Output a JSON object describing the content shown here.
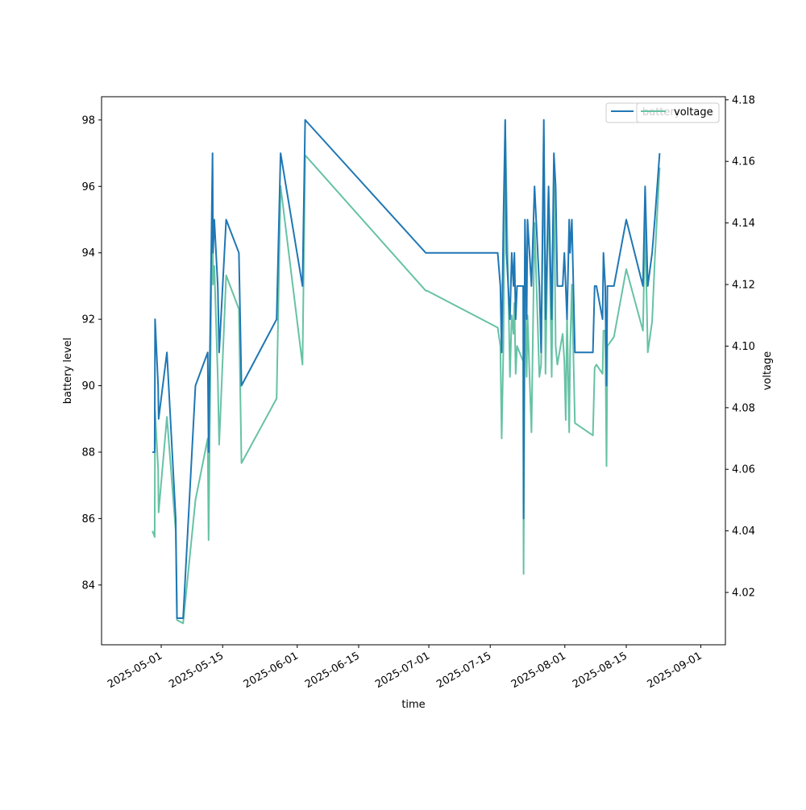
{
  "chart_data": {
    "type": "line",
    "xlabel": "time",
    "ylabel_left": "battery level",
    "ylabel_right": "voltage",
    "x_range_days": [
      -13.6,
      128.6
    ],
    "ylim_left": [
      82.2,
      98.7
    ],
    "ylim_right": [
      4.003,
      4.181
    ],
    "left_ticks": [
      84,
      86,
      88,
      90,
      92,
      94,
      96,
      98
    ],
    "right_ticks": [
      "4.02",
      "4.04",
      "4.06",
      "4.08",
      "4.10",
      "4.12",
      "4.14",
      "4.16",
      "4.18"
    ],
    "x_ticks": [
      {
        "day": 0,
        "label": "2025-05-01"
      },
      {
        "day": 14,
        "label": "2025-05-15"
      },
      {
        "day": 31,
        "label": "2025-06-01"
      },
      {
        "day": 45,
        "label": "2025-06-15"
      },
      {
        "day": 61,
        "label": "2025-07-01"
      },
      {
        "day": 75,
        "label": "2025-07-15"
      },
      {
        "day": 92,
        "label": "2025-08-01"
      },
      {
        "day": 106,
        "label": "2025-08-15"
      },
      {
        "day": 123,
        "label": "2025-09-01"
      }
    ],
    "legend": {
      "position": "upper right",
      "entries": [
        "battery",
        "voltage"
      ]
    },
    "series": [
      {
        "name": "battery",
        "axis": "left",
        "color": "#1f77b4",
        "points": [
          [
            -2.0,
            88
          ],
          [
            -1.5,
            88
          ],
          [
            -1.4,
            92
          ],
          [
            -0.7,
            90
          ],
          [
            -0.6,
            89
          ],
          [
            1.3,
            91
          ],
          [
            3.3,
            86
          ],
          [
            3.6,
            83
          ],
          [
            5.0,
            83
          ],
          [
            7.8,
            90
          ],
          [
            10.6,
            91
          ],
          [
            10.8,
            88
          ],
          [
            11.7,
            97
          ],
          [
            11.8,
            94
          ],
          [
            12.1,
            95
          ],
          [
            12.9,
            93
          ],
          [
            13.2,
            91
          ],
          [
            14.8,
            95
          ],
          [
            17.7,
            94
          ],
          [
            18.3,
            90
          ],
          [
            26.3,
            92
          ],
          [
            27.2,
            97
          ],
          [
            32.2,
            93
          ],
          [
            32.8,
            98
          ],
          [
            60.3,
            94
          ],
          [
            60.6,
            94
          ],
          [
            76.7,
            94
          ],
          [
            77.3,
            93
          ],
          [
            77.6,
            91
          ],
          [
            78.0,
            95
          ],
          [
            78.4,
            98
          ],
          [
            78.7,
            94
          ],
          [
            79.5,
            92
          ],
          [
            79.9,
            94
          ],
          [
            80.3,
            93
          ],
          [
            80.5,
            94
          ],
          [
            80.8,
            92
          ],
          [
            81.1,
            93
          ],
          [
            82.5,
            93
          ],
          [
            82.6,
            86
          ],
          [
            82.9,
            95
          ],
          [
            83.3,
            92
          ],
          [
            83.5,
            95
          ],
          [
            84.4,
            93
          ],
          [
            85.1,
            96
          ],
          [
            86.2,
            93
          ],
          [
            86.6,
            91
          ],
          [
            87.2,
            98
          ],
          [
            87.6,
            92
          ],
          [
            88.3,
            96
          ],
          [
            89.0,
            92
          ],
          [
            89.5,
            97
          ],
          [
            89.9,
            96
          ],
          [
            90.3,
            93
          ],
          [
            91.5,
            93
          ],
          [
            91.9,
            94
          ],
          [
            92.2,
            93
          ],
          [
            92.5,
            92
          ],
          [
            93.0,
            95
          ],
          [
            93.2,
            94
          ],
          [
            93.6,
            95
          ],
          [
            94.3,
            91
          ],
          [
            98.4,
            91
          ],
          [
            98.8,
            93
          ],
          [
            99.2,
            93
          ],
          [
            100.6,
            92
          ],
          [
            100.8,
            94
          ],
          [
            101.2,
            93
          ],
          [
            101.5,
            90
          ],
          [
            101.7,
            93
          ],
          [
            103.2,
            93
          ],
          [
            106.0,
            95
          ],
          [
            109.8,
            93
          ],
          [
            110.3,
            96
          ],
          [
            110.9,
            93
          ],
          [
            111.9,
            94
          ],
          [
            112.5,
            95
          ],
          [
            113.6,
            97
          ]
        ]
      },
      {
        "name": "voltage",
        "axis": "right",
        "color": "#66c2a5",
        "points": [
          [
            -2.0,
            4.04
          ],
          [
            -1.5,
            4.038
          ],
          [
            -1.4,
            4.079
          ],
          [
            -0.7,
            4.06
          ],
          [
            -0.6,
            4.046
          ],
          [
            1.3,
            4.077
          ],
          [
            3.3,
            4.04
          ],
          [
            3.6,
            4.011
          ],
          [
            5.0,
            4.01
          ],
          [
            7.8,
            4.05
          ],
          [
            10.6,
            4.07
          ],
          [
            10.8,
            4.037
          ],
          [
            11.7,
            4.158
          ],
          [
            11.8,
            4.12
          ],
          [
            12.1,
            4.126
          ],
          [
            12.9,
            4.09
          ],
          [
            13.2,
            4.068
          ],
          [
            14.8,
            4.123
          ],
          [
            17.7,
            4.112
          ],
          [
            18.3,
            4.062
          ],
          [
            26.3,
            4.083
          ],
          [
            27.2,
            4.152
          ],
          [
            32.2,
            4.094
          ],
          [
            32.8,
            4.162
          ],
          [
            60.3,
            4.118
          ],
          [
            60.6,
            4.118
          ],
          [
            76.7,
            4.106
          ],
          [
            77.3,
            4.1
          ],
          [
            77.6,
            4.07
          ],
          [
            78.0,
            4.1
          ],
          [
            78.4,
            4.173
          ],
          [
            78.7,
            4.15
          ],
          [
            79.5,
            4.09
          ],
          [
            79.9,
            4.11
          ],
          [
            80.3,
            4.104
          ],
          [
            80.5,
            4.114
          ],
          [
            80.8,
            4.091
          ],
          [
            81.1,
            4.1
          ],
          [
            82.5,
            4.095
          ],
          [
            82.6,
            4.026
          ],
          [
            82.9,
            4.12
          ],
          [
            83.3,
            4.09
          ],
          [
            83.5,
            4.11
          ],
          [
            84.4,
            4.072
          ],
          [
            85.1,
            4.14
          ],
          [
            86.2,
            4.09
          ],
          [
            86.6,
            4.094
          ],
          [
            87.2,
            4.168
          ],
          [
            87.6,
            4.091
          ],
          [
            88.3,
            4.15
          ],
          [
            89.0,
            4.09
          ],
          [
            89.5,
            4.158
          ],
          [
            89.9,
            4.1
          ],
          [
            90.3,
            4.094
          ],
          [
            91.5,
            4.104
          ],
          [
            91.9,
            4.095
          ],
          [
            92.2,
            4.076
          ],
          [
            92.5,
            4.11
          ],
          [
            93.0,
            4.072
          ],
          [
            93.2,
            4.098
          ],
          [
            93.6,
            4.12
          ],
          [
            94.3,
            4.075
          ],
          [
            98.4,
            4.071
          ],
          [
            98.8,
            4.093
          ],
          [
            99.2,
            4.094
          ],
          [
            100.6,
            4.091
          ],
          [
            100.8,
            4.105
          ],
          [
            101.2,
            4.105
          ],
          [
            101.5,
            4.061
          ],
          [
            101.7,
            4.1
          ],
          [
            103.2,
            4.103
          ],
          [
            106.0,
            4.125
          ],
          [
            109.8,
            4.105
          ],
          [
            110.3,
            4.14
          ],
          [
            110.9,
            4.098
          ],
          [
            111.9,
            4.108
          ],
          [
            112.5,
            4.128
          ],
          [
            113.6,
            4.158
          ]
        ]
      }
    ]
  }
}
